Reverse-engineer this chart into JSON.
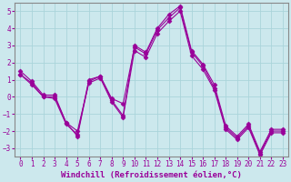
{
  "xlabel": "Windchill (Refroidissement éolien,°C)",
  "x": [
    0,
    1,
    2,
    3,
    4,
    5,
    6,
    7,
    8,
    9,
    10,
    11,
    12,
    13,
    14,
    15,
    16,
    17,
    18,
    19,
    20,
    21,
    22,
    23
  ],
  "line1": [
    1.5,
    0.9,
    0.1,
    0.1,
    -1.5,
    -2.3,
    0.9,
    1.2,
    -0.2,
    -1.1,
    3.0,
    2.6,
    4.0,
    4.8,
    5.3,
    2.7,
    1.9,
    0.7,
    -1.7,
    -2.3,
    -1.6,
    -3.2,
    -1.9,
    -1.9
  ],
  "line2": [
    1.3,
    0.7,
    0.0,
    -0.1,
    -1.6,
    -2.2,
    1.0,
    1.2,
    -0.1,
    -0.4,
    2.9,
    2.5,
    3.9,
    4.6,
    5.2,
    2.6,
    1.8,
    0.5,
    -1.8,
    -2.4,
    -1.7,
    -3.3,
    -2.0,
    -2.0
  ],
  "line3": [
    1.3,
    0.8,
    0.0,
    0.0,
    -1.5,
    -2.0,
    0.8,
    1.1,
    -0.3,
    -1.2,
    2.7,
    2.3,
    3.7,
    4.4,
    5.0,
    2.4,
    1.6,
    0.4,
    -1.9,
    -2.5,
    -1.8,
    -3.4,
    -2.1,
    -2.1
  ],
  "line_color": "#990099",
  "bg_color": "#cce8ed",
  "grid_color": "#b0d8de",
  "ylim": [
    -3.5,
    5.5
  ],
  "yticks": [
    -3,
    -2,
    -1,
    0,
    1,
    2,
    3,
    4,
    5
  ],
  "xticks": [
    0,
    1,
    2,
    3,
    4,
    5,
    6,
    7,
    8,
    9,
    10,
    11,
    12,
    13,
    14,
    15,
    16,
    17,
    18,
    19,
    20,
    21,
    22,
    23
  ],
  "marker": "D",
  "markersize": 2.5,
  "linewidth": 0.8,
  "tick_fontsize": 5.5,
  "label_fontsize": 6.5
}
